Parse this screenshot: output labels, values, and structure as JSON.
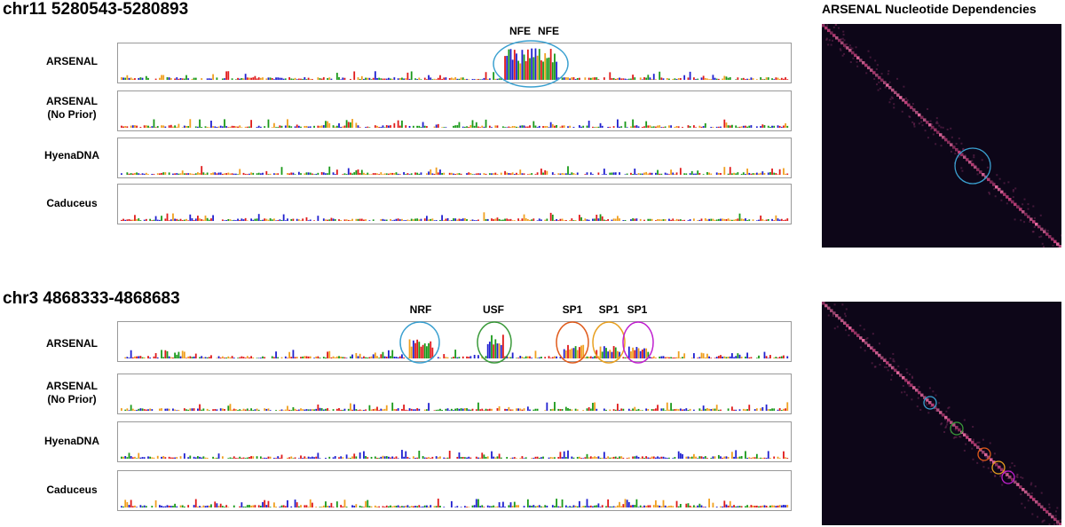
{
  "panels": [
    {
      "region": "chr11 5280543-5280893",
      "tracks": [
        {
          "label_line1": "ARSENAL",
          "label_line2": ""
        },
        {
          "label_line1": "ARSENAL",
          "label_line2": "(No Prior)"
        },
        {
          "label_line1": "HyenaDNA",
          "label_line2": ""
        },
        {
          "label_line1": "Caduceus",
          "label_line2": ""
        }
      ],
      "motifs": [
        {
          "label": "NFE"
        },
        {
          "label": "NFE"
        }
      ],
      "highlight_colors": [
        "#3aa0d0"
      ]
    },
    {
      "region": "chr3 4868333-4868683",
      "tracks": [
        {
          "label_line1": "ARSENAL",
          "label_line2": ""
        },
        {
          "label_line1": "ARSENAL",
          "label_line2": "(No Prior)"
        },
        {
          "label_line1": "HyenaDNA",
          "label_line2": ""
        },
        {
          "label_line1": "Caduceus",
          "label_line2": ""
        }
      ],
      "motifs": [
        {
          "label": "NRF",
          "color": "#3aa0d0"
        },
        {
          "label": "USF",
          "color": "#3a9a3a"
        },
        {
          "label": "SP1",
          "color": "#e05a1a"
        },
        {
          "label": "SP1",
          "color": "#e8a020"
        },
        {
          "label": "SP1",
          "color": "#c020d0"
        }
      ]
    }
  ],
  "heatmap_title": "ARSENAL Nucleotide Dependencies",
  "nucleotide_colors": {
    "A": "#1a9a1a",
    "C": "#2020d0",
    "G": "#f0a020",
    "T": "#e01a1a"
  }
}
